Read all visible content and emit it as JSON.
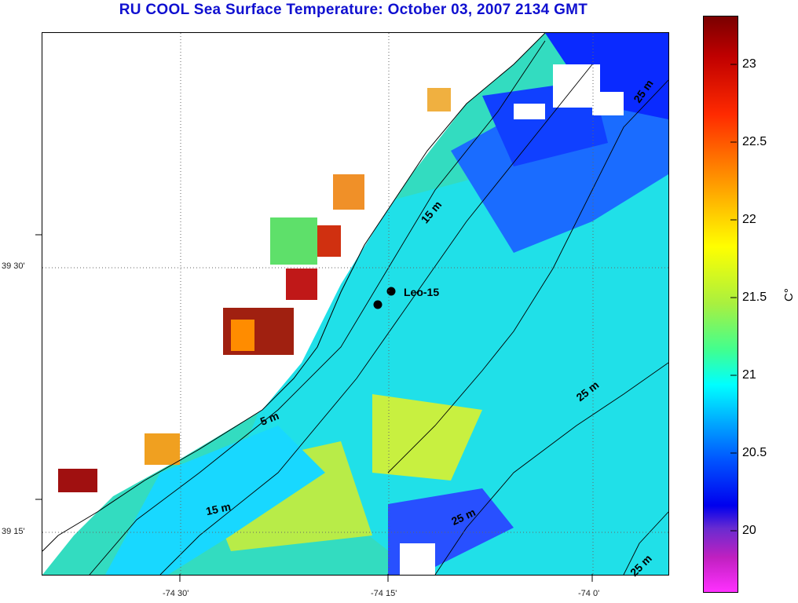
{
  "title": "RU COOL  Sea Surface Temperature:  October 03, 2007 2134 GMT",
  "map": {
    "lat_labels": [
      "39 30'",
      "39 15'"
    ],
    "lon_labels": [
      "-74 30'",
      "-74 15'",
      "-74 0'"
    ],
    "site_label": "Leo-15",
    "contour_labels": [
      "25 m",
      "15 m",
      "5 m",
      "25 m",
      "15 m",
      "25 m",
      "25 m"
    ]
  },
  "colorbar": {
    "unit": "C°",
    "tick_labels": [
      "23",
      "22.5",
      "22",
      "21.5",
      "21",
      "20.5",
      "20"
    ],
    "tick_values": [
      23,
      22.5,
      22,
      21.5,
      21,
      20.5,
      20
    ],
    "range": [
      19.6,
      23.3
    ],
    "colors": {
      "high": "#7a0000",
      "mid_warm": "#ffff00",
      "mid": "#00ffff",
      "low": "#0000ee",
      "lowest": "#ff30ff"
    }
  }
}
